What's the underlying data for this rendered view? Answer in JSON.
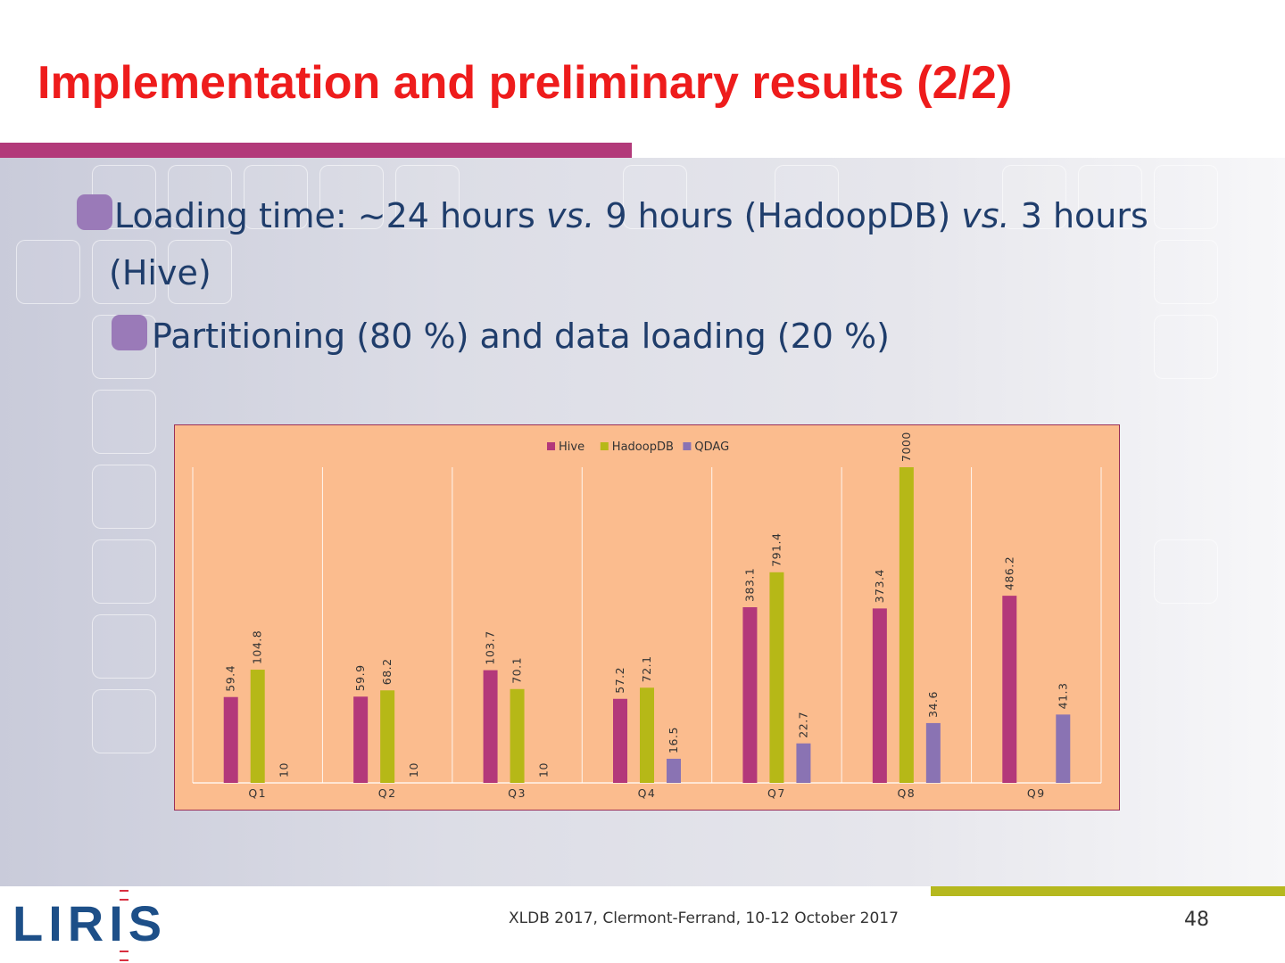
{
  "slide": {
    "title": "Implementation and preliminary results (2/2)",
    "page_number": "48",
    "footer": "XLDB 2017,  Clermont-Ferrand, 10-12 October 2017",
    "logo_text": "LIRIS"
  },
  "bullets": [
    {
      "level": 1,
      "parts": [
        {
          "text": "Loading time: ~24 hours ",
          "italic": false
        },
        {
          "text": "vs.",
          "italic": true
        },
        {
          "text": " 9 hours (HadoopDB) ",
          "italic": false
        },
        {
          "text": "vs.",
          "italic": true
        },
        {
          "text": " 3 hours",
          "italic": false
        }
      ],
      "continuation": "(Hive)"
    },
    {
      "level": 2,
      "parts": [
        {
          "text": "Partitioning (80 %) and data loading (20 %)",
          "italic": false
        }
      ]
    }
  ],
  "colors": {
    "title": "#ee1c1c",
    "title_rule": "#b23a7a",
    "footer_bar": "#b5b81e",
    "bullet_marker": "#9a7ab8",
    "text": "#1f3d6b",
    "chart_background": "#fbbc8e",
    "logo_blue": "#1d4f88",
    "logo_red": "#d83040"
  },
  "chart_data": {
    "type": "bar",
    "title": "",
    "xlabel": "",
    "ylabel": "",
    "legend_position": "top",
    "grid": false,
    "scale": "log",
    "ylim": [
      10,
      7000
    ],
    "categories": [
      "Q1",
      "Q2",
      "Q3",
      "Q4",
      "Q7",
      "Q8",
      "Q9"
    ],
    "series": [
      {
        "name": "Hive",
        "color": "#b3387a",
        "values": [
          59.4,
          59.9,
          103.7,
          57.2,
          383.1,
          373.4,
          486.2
        ]
      },
      {
        "name": "HadoopDB",
        "color": "#b6b817",
        "values": [
          104.8,
          68.2,
          70.1,
          72.1,
          791.4,
          7000,
          null
        ]
      },
      {
        "name": "QDAG",
        "color": "#8a73b3",
        "values": [
          10,
          10,
          10,
          16.5,
          22.7,
          34.6,
          41.3
        ]
      }
    ]
  }
}
